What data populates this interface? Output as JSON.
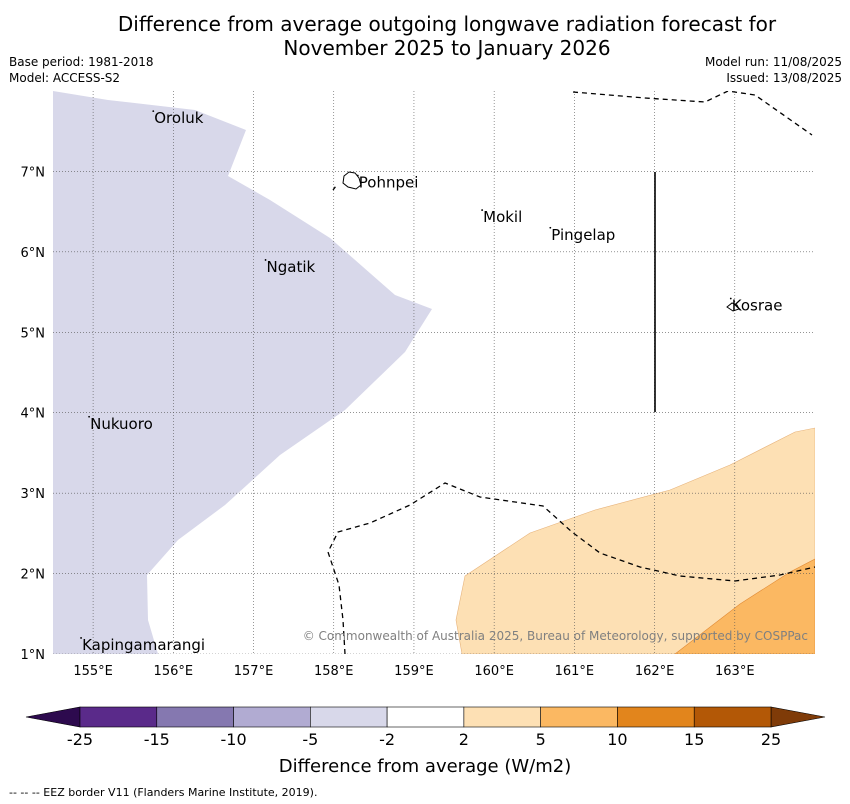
{
  "title_line1": "Difference from average outgoing longwave radiation forecast for",
  "title_line2": "November 2025 to January 2026",
  "base_period": "Base period: 1981-2018",
  "model": "Model: ACCESS-S2",
  "model_run": "Model run: 11/08/2025",
  "issued": "Issued: 13/08/2025",
  "copyright": "© Commonwealth of Australia 2025, Bureau of Meteorology, supported by COSPPac",
  "map": {
    "lon_range": [
      154.5,
      164.0
    ],
    "lat_range": [
      1.0,
      8.0
    ],
    "lon_ticks": [
      155,
      156,
      157,
      158,
      159,
      160,
      161,
      162,
      163
    ],
    "lon_tick_labels": [
      "155°E",
      "156°E",
      "157°E",
      "158°E",
      "159°E",
      "160°E",
      "161°E",
      "162°E",
      "163°E"
    ],
    "lat_ticks": [
      1,
      2,
      3,
      4,
      5,
      6,
      7
    ],
    "lat_tick_labels": [
      "1°N",
      "2°N",
      "3°N",
      "4°N",
      "5°N",
      "6°N",
      "7°N"
    ],
    "places": [
      {
        "name": "Oroluk",
        "lon": 155.75,
        "lat": 7.65
      },
      {
        "name": "Pohnpei",
        "lon": 158.3,
        "lat": 6.85
      },
      {
        "name": "Mokil",
        "lon": 159.85,
        "lat": 6.42
      },
      {
        "name": "Pingelap",
        "lon": 160.7,
        "lat": 6.2
      },
      {
        "name": "Ngatik",
        "lon": 157.15,
        "lat": 5.8
      },
      {
        "name": "Kosrae",
        "lon": 162.95,
        "lat": 5.32
      },
      {
        "name": "Nukuoro",
        "lon": 154.95,
        "lat": 3.85
      },
      {
        "name": "Kapingamarangi",
        "lon": 154.85,
        "lat": 1.1
      }
    ]
  },
  "colorbar": {
    "ticks": [
      "-25",
      "-15",
      "-10",
      "-5",
      "-2",
      "2",
      "5",
      "10",
      "15",
      "25"
    ],
    "colors": [
      "#5a2a8a",
      "#8578b0",
      "#b1abd2",
      "#d8d8ea",
      "#ffffff",
      "#fde0b4",
      "#fbb862",
      "#e2851c",
      "#b35806"
    ],
    "under_color": "#2d0a4e",
    "over_color": "#7f3b08",
    "label": "Difference from average (W/m2)"
  },
  "footer": "--  --  -- EEZ border V11 (Flanders Marine Institute, 2019)."
}
